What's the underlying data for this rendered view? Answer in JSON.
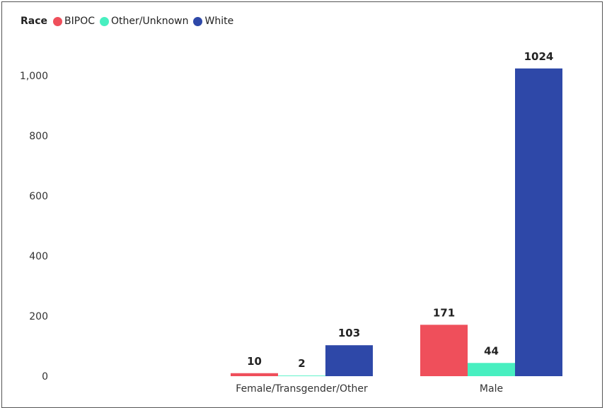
{
  "chart_data": {
    "type": "bar",
    "legend_title": "Race",
    "categories": [
      "Female/Transgender/Other",
      "Male"
    ],
    "series": [
      {
        "name": "BIPOC",
        "color": "#EF4F5B",
        "values": [
          10,
          171
        ]
      },
      {
        "name": "Other/Unknown",
        "color": "#48EFC0",
        "values": [
          2,
          44
        ]
      },
      {
        "name": "White",
        "color": "#2E48A8",
        "values": [
          103,
          1024
        ]
      }
    ],
    "yticks": [
      "0",
      "200",
      "400",
      "600",
      "800",
      "1,000"
    ],
    "ytick_values": [
      0,
      200,
      400,
      600,
      800,
      1000
    ],
    "ylim": [
      0,
      1100
    ],
    "legend_position": "top-left",
    "grid": false
  }
}
